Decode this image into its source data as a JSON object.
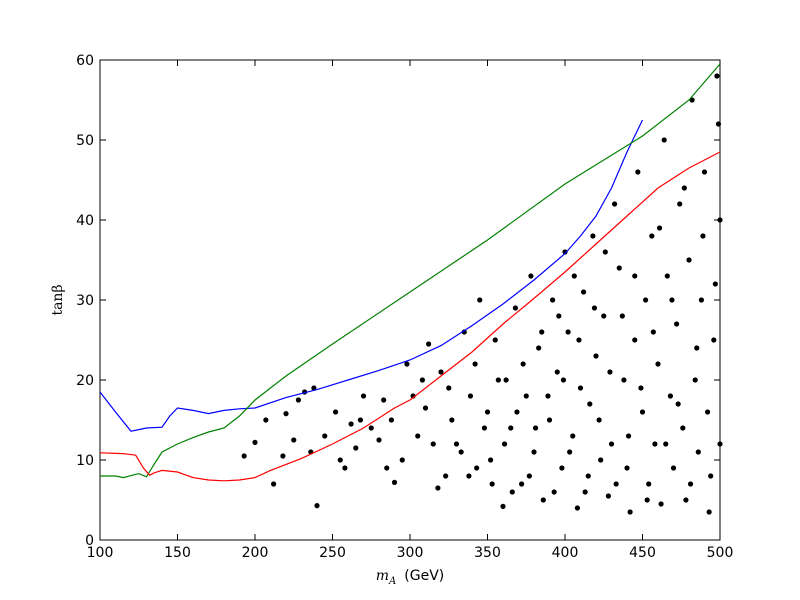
{
  "chart_data": {
    "type": "scatter",
    "xlabel_symbol": "m",
    "xlabel_subscript": "A",
    "xlabel_unit": "(GeV)",
    "ylabel": "tanβ",
    "xlim": [
      100,
      500
    ],
    "ylim": [
      0,
      60
    ],
    "xticks": [
      100,
      150,
      200,
      250,
      300,
      350,
      400,
      450,
      500
    ],
    "yticks": [
      0,
      10,
      20,
      30,
      40,
      50,
      60
    ],
    "grid": false,
    "lines": [
      {
        "color": "#0000ff",
        "x": [
          100,
          110,
          120,
          130,
          140,
          145,
          150,
          160,
          170,
          180,
          190,
          200,
          220,
          240,
          260,
          280,
          300,
          320,
          340,
          360,
          380,
          400,
          410,
          420,
          430,
          440,
          450
        ],
        "values": [
          18.5,
          16,
          13.6,
          14,
          14.1,
          15.5,
          16.5,
          16.2,
          15.8,
          16.2,
          16.4,
          16.5,
          17.8,
          18.8,
          20,
          21.2,
          22.5,
          24.3,
          26.8,
          29.5,
          32.5,
          35.8,
          38,
          40.5,
          44,
          48.5,
          52.5
        ]
      },
      {
        "color": "#008000",
        "x": [
          100,
          110,
          115,
          125,
          130,
          135,
          140,
          150,
          160,
          170,
          180,
          190,
          200,
          220,
          250,
          300,
          350,
          400,
          450,
          480,
          500
        ],
        "values": [
          8,
          8,
          7.8,
          8.3,
          7.9,
          9.5,
          11,
          12,
          12.8,
          13.5,
          14,
          15.5,
          17.5,
          20.5,
          24.5,
          31,
          37.5,
          44.5,
          50.5,
          55,
          59.5
        ]
      },
      {
        "color": "#ff0000",
        "x": [
          100,
          115,
          123,
          128,
          132,
          135,
          140,
          150,
          160,
          170,
          180,
          190,
          200,
          210,
          230,
          250,
          270,
          290,
          300,
          320,
          340,
          360,
          380,
          400,
          420,
          440,
          460,
          480,
          500
        ],
        "values": [
          10.9,
          10.8,
          10.6,
          9,
          8.1,
          8.4,
          8.7,
          8.5,
          7.8,
          7.5,
          7.4,
          7.5,
          7.8,
          8.7,
          10.2,
          12,
          14,
          16.5,
          17.5,
          20.5,
          23.5,
          27,
          30.2,
          33.5,
          37,
          40.5,
          44,
          46.5,
          48.5
        ]
      }
    ],
    "points": {
      "color": "#000000",
      "x": [
        193,
        200,
        207,
        212,
        218,
        220,
        225,
        228,
        232,
        236,
        240,
        238,
        245,
        252,
        258,
        262,
        265,
        270,
        275,
        280,
        283,
        288,
        290,
        295,
        298,
        302,
        305,
        310,
        312,
        318,
        320,
        325,
        330,
        335,
        338,
        342,
        345,
        350,
        352,
        355,
        360,
        362,
        365,
        368,
        372,
        375,
        378,
        380,
        383,
        386,
        390,
        392,
        395,
        398,
        400,
        402,
        405,
        408,
        410,
        412,
        415,
        418,
        420,
        422,
        425,
        428,
        430,
        432,
        435,
        438,
        440,
        442,
        445,
        447,
        450,
        452,
        454,
        456,
        458,
        460,
        462,
        464,
        466,
        468,
        470,
        472,
        474,
        476,
        478,
        480,
        482,
        484,
        486,
        488,
        490,
        492,
        494,
        496,
        498,
        500,
        500,
        499,
        497,
        493,
        489,
        485,
        481,
        477,
        473,
        469,
        465,
        461,
        457,
        453,
        449,
        445,
        441,
        437,
        433,
        429,
        426,
        423,
        419,
        416,
        413,
        409,
        406,
        403,
        399,
        396,
        393,
        389,
        385,
        381,
        377,
        373,
        369,
        366,
        361,
        357,
        353,
        348,
        343,
        339,
        333,
        327,
        323,
        315,
        308,
        285,
        268,
        255
      ],
      "values": [
        10.5,
        12.2,
        15,
        7,
        10.5,
        15.8,
        12.5,
        17.5,
        18.5,
        11,
        4.3,
        19,
        13,
        16,
        9,
        14.5,
        11.5,
        18,
        14,
        12.5,
        17.5,
        15,
        7.2,
        10,
        22,
        18,
        13,
        16.5,
        24.5,
        6.5,
        21,
        19,
        12,
        26,
        8,
        22,
        30,
        16,
        10,
        25,
        4.2,
        20,
        14,
        29,
        7,
        18,
        33,
        11,
        24,
        5,
        15,
        30,
        21,
        9,
        36,
        26,
        13,
        4,
        19,
        31,
        8,
        38,
        23,
        15,
        28,
        5.5,
        12,
        42,
        34,
        20,
        9,
        3.5,
        25,
        46,
        16,
        30,
        7,
        38,
        12,
        22,
        4.5,
        50,
        33,
        18,
        9,
        27,
        42,
        14,
        5,
        35,
        55,
        20,
        11,
        30,
        46,
        16,
        8,
        25,
        58,
        40,
        12,
        52,
        32,
        3.5,
        38,
        24,
        7,
        44,
        17,
        30,
        12,
        39,
        26,
        5,
        19,
        33,
        13,
        28,
        7,
        21,
        36,
        10,
        29,
        17,
        6,
        25,
        33,
        11,
        20,
        28,
        6,
        18,
        26,
        14,
        8,
        22,
        16,
        6,
        12,
        20,
        7,
        14,
        9,
        18,
        11,
        15,
        8,
        12,
        20,
        9,
        15,
        10
      ]
    }
  }
}
